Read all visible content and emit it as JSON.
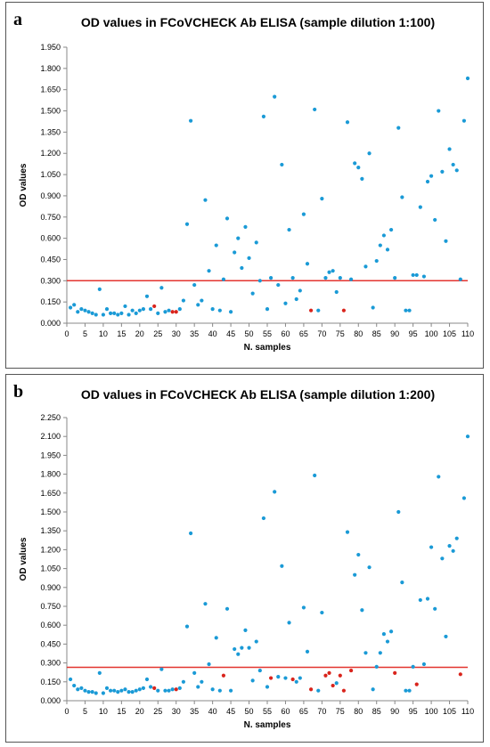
{
  "chart_data": [
    {
      "panel_label": "a",
      "type": "scatter",
      "title": "OD values in FCoVCHECK Ab ELISA (sample dilution 1:100)",
      "xlabel": "N. samples",
      "ylabel": "OD values",
      "xlim": [
        0,
        110
      ],
      "ylim": [
        0,
        1.95
      ],
      "x_ticks": [
        "0",
        "5",
        "10",
        "15",
        "20",
        "25",
        "30",
        "35",
        "40",
        "45",
        "50",
        "55",
        "60",
        "65",
        "70",
        "75",
        "80",
        "85",
        "90",
        "95",
        "100",
        "105",
        "110"
      ],
      "y_ticks": [
        "0.000",
        "0.150",
        "0.300",
        "0.450",
        "0.600",
        "0.750",
        "0.900",
        "1.050",
        "1.200",
        "1.350",
        "1.500",
        "1.650",
        "1.800",
        "1.950"
      ],
      "grid": false,
      "cutoff": 0.3,
      "colors": {
        "blue": "#1a9ad6",
        "red": "#d9241c",
        "cutoff_line": "#e3342f"
      },
      "series": [
        {
          "color": "blue",
          "points": [
            [
              1,
              0.11
            ],
            [
              2,
              0.13
            ],
            [
              3,
              0.08
            ],
            [
              4,
              0.1
            ],
            [
              5,
              0.09
            ],
            [
              6,
              0.08
            ],
            [
              7,
              0.07
            ],
            [
              8,
              0.06
            ],
            [
              9,
              0.24
            ],
            [
              10,
              0.06
            ],
            [
              11,
              0.1
            ],
            [
              12,
              0.07
            ],
            [
              13,
              0.07
            ],
            [
              14,
              0.06
            ],
            [
              15,
              0.07
            ],
            [
              16,
              0.12
            ],
            [
              17,
              0.06
            ],
            [
              18,
              0.09
            ],
            [
              19,
              0.07
            ],
            [
              20,
              0.09
            ],
            [
              21,
              0.1
            ],
            [
              22,
              0.19
            ],
            [
              23,
              0.1
            ],
            [
              25,
              0.07
            ],
            [
              26,
              0.25
            ],
            [
              27,
              0.08
            ],
            [
              28,
              0.09
            ],
            [
              31,
              0.1
            ],
            [
              32,
              0.16
            ],
            [
              33,
              0.7
            ],
            [
              34,
              1.43
            ],
            [
              35,
              0.27
            ],
            [
              36,
              0.13
            ],
            [
              37,
              0.16
            ],
            [
              38,
              0.87
            ],
            [
              39,
              0.37
            ],
            [
              40,
              0.1
            ],
            [
              41,
              0.55
            ],
            [
              42,
              0.09
            ],
            [
              43,
              0.31
            ],
            [
              44,
              0.74
            ],
            [
              45,
              0.08
            ],
            [
              46,
              0.5
            ],
            [
              47,
              0.6
            ],
            [
              48,
              0.39
            ],
            [
              49,
              0.68
            ],
            [
              50,
              0.46
            ],
            [
              51,
              0.21
            ],
            [
              52,
              0.57
            ],
            [
              53,
              0.3
            ],
            [
              54,
              1.46
            ],
            [
              55,
              0.1
            ],
            [
              56,
              0.32
            ],
            [
              57,
              1.6
            ],
            [
              58,
              0.27
            ],
            [
              59,
              1.12
            ],
            [
              60,
              0.14
            ],
            [
              61,
              0.66
            ],
            [
              62,
              0.32
            ],
            [
              63,
              0.17
            ],
            [
              64,
              0.23
            ],
            [
              65,
              0.77
            ],
            [
              66,
              0.42
            ],
            [
              68,
              1.51
            ],
            [
              69,
              0.09
            ],
            [
              70,
              0.88
            ],
            [
              71,
              0.32
            ],
            [
              72,
              0.36
            ],
            [
              73,
              0.37
            ],
            [
              74,
              0.22
            ],
            [
              75,
              0.32
            ],
            [
              77,
              1.42
            ],
            [
              78,
              0.31
            ],
            [
              79,
              1.13
            ],
            [
              80,
              1.1
            ],
            [
              81,
              1.02
            ],
            [
              82,
              0.4
            ],
            [
              83,
              1.2
            ],
            [
              84,
              0.11
            ],
            [
              85,
              0.44
            ],
            [
              86,
              0.55
            ],
            [
              87,
              0.62
            ],
            [
              88,
              0.52
            ],
            [
              89,
              0.66
            ],
            [
              90,
              0.32
            ],
            [
              91,
              1.38
            ],
            [
              92,
              0.89
            ],
            [
              93,
              0.09
            ],
            [
              94,
              0.09
            ],
            [
              95,
              0.34
            ],
            [
              96,
              0.34
            ],
            [
              97,
              0.82
            ],
            [
              98,
              0.33
            ],
            [
              99,
              1.0
            ],
            [
              100,
              1.04
            ],
            [
              101,
              0.73
            ],
            [
              102,
              1.5
            ],
            [
              103,
              1.07
            ],
            [
              104,
              0.58
            ],
            [
              105,
              1.23
            ],
            [
              106,
              1.12
            ],
            [
              107,
              1.08
            ],
            [
              108,
              0.31
            ],
            [
              109,
              1.43
            ],
            [
              110,
              1.73
            ]
          ]
        },
        {
          "color": "red",
          "points": [
            [
              24,
              0.12
            ],
            [
              29,
              0.08
            ],
            [
              30,
              0.08
            ],
            [
              67,
              0.09
            ],
            [
              76,
              0.09
            ]
          ]
        }
      ]
    },
    {
      "panel_label": "b",
      "type": "scatter",
      "title": "OD values in FCoVCHECK Ab ELISA (sample dilution 1:200)",
      "xlabel": "N. samples",
      "ylabel": "OD values",
      "xlim": [
        0,
        110
      ],
      "ylim": [
        0,
        2.25
      ],
      "x_ticks": [
        "0",
        "5",
        "10",
        "15",
        "20",
        "25",
        "30",
        "35",
        "40",
        "45",
        "50",
        "55",
        "60",
        "65",
        "70",
        "75",
        "80",
        "85",
        "90",
        "95",
        "100",
        "105",
        "110"
      ],
      "y_ticks": [
        "0.000",
        "0.150",
        "0.300",
        "0.450",
        "0.600",
        "0.750",
        "0.900",
        "1.050",
        "1.200",
        "1.350",
        "1.500",
        "1.650",
        "1.800",
        "1.950",
        "2.100",
        "2.250"
      ],
      "grid": false,
      "cutoff": 0.265,
      "colors": {
        "blue": "#1a9ad6",
        "red": "#d9241c",
        "cutoff_line": "#e3342f"
      },
      "series": [
        {
          "color": "blue",
          "points": [
            [
              1,
              0.17
            ],
            [
              2,
              0.12
            ],
            [
              3,
              0.09
            ],
            [
              4,
              0.1
            ],
            [
              5,
              0.08
            ],
            [
              6,
              0.07
            ],
            [
              7,
              0.07
            ],
            [
              8,
              0.06
            ],
            [
              9,
              0.22
            ],
            [
              10,
              0.06
            ],
            [
              11,
              0.1
            ],
            [
              12,
              0.08
            ],
            [
              13,
              0.08
            ],
            [
              14,
              0.07
            ],
            [
              15,
              0.08
            ],
            [
              16,
              0.09
            ],
            [
              17,
              0.07
            ],
            [
              18,
              0.07
            ],
            [
              19,
              0.08
            ],
            [
              20,
              0.09
            ],
            [
              21,
              0.1
            ],
            [
              22,
              0.17
            ],
            [
              23,
              0.11
            ],
            [
              25,
              0.08
            ],
            [
              26,
              0.25
            ],
            [
              27,
              0.08
            ],
            [
              28,
              0.08
            ],
            [
              29,
              0.09
            ],
            [
              31,
              0.1
            ],
            [
              32,
              0.15
            ],
            [
              33,
              0.59
            ],
            [
              34,
              1.33
            ],
            [
              35,
              0.22
            ],
            [
              36,
              0.11
            ],
            [
              37,
              0.15
            ],
            [
              38,
              0.77
            ],
            [
              39,
              0.29
            ],
            [
              40,
              0.09
            ],
            [
              41,
              0.5
            ],
            [
              42,
              0.08
            ],
            [
              44,
              0.73
            ],
            [
              45,
              0.08
            ],
            [
              46,
              0.41
            ],
            [
              47,
              0.37
            ],
            [
              48,
              0.42
            ],
            [
              49,
              0.56
            ],
            [
              50,
              0.42
            ],
            [
              51,
              0.16
            ],
            [
              52,
              0.47
            ],
            [
              53,
              0.24
            ],
            [
              54,
              1.45
            ],
            [
              55,
              0.11
            ],
            [
              57,
              1.66
            ],
            [
              58,
              0.19
            ],
            [
              59,
              1.07
            ],
            [
              60,
              0.18
            ],
            [
              61,
              0.62
            ],
            [
              63,
              0.15
            ],
            [
              64,
              0.18
            ],
            [
              65,
              0.74
            ],
            [
              66,
              0.39
            ],
            [
              68,
              1.79
            ],
            [
              69,
              0.08
            ],
            [
              70,
              0.7
            ],
            [
              74,
              0.14
            ],
            [
              77,
              1.34
            ],
            [
              79,
              1.0
            ],
            [
              80,
              1.16
            ],
            [
              81,
              0.72
            ],
            [
              82,
              0.38
            ],
            [
              83,
              1.06
            ],
            [
              84,
              0.09
            ],
            [
              85,
              0.27
            ],
            [
              86,
              0.38
            ],
            [
              87,
              0.53
            ],
            [
              88,
              0.47
            ],
            [
              89,
              0.55
            ],
            [
              91,
              1.5
            ],
            [
              92,
              0.94
            ],
            [
              93,
              0.08
            ],
            [
              94,
              0.08
            ],
            [
              95,
              0.27
            ],
            [
              97,
              0.8
            ],
            [
              98,
              0.29
            ],
            [
              99,
              0.81
            ],
            [
              100,
              1.22
            ],
            [
              101,
              0.73
            ],
            [
              102,
              1.78
            ],
            [
              103,
              1.13
            ],
            [
              104,
              0.51
            ],
            [
              105,
              1.23
            ],
            [
              106,
              1.19
            ],
            [
              107,
              1.29
            ],
            [
              109,
              1.61
            ],
            [
              110,
              2.1
            ]
          ]
        },
        {
          "color": "red",
          "points": [
            [
              24,
              0.1
            ],
            [
              30,
              0.09
            ],
            [
              43,
              0.2
            ],
            [
              56,
              0.18
            ],
            [
              62,
              0.17
            ],
            [
              67,
              0.09
            ],
            [
              71,
              0.2
            ],
            [
              72,
              0.22
            ],
            [
              73,
              0.12
            ],
            [
              75,
              0.2
            ],
            [
              76,
              0.08
            ],
            [
              78,
              0.24
            ],
            [
              90,
              0.22
            ],
            [
              96,
              0.13
            ],
            [
              108,
              0.21
            ]
          ]
        }
      ]
    }
  ]
}
